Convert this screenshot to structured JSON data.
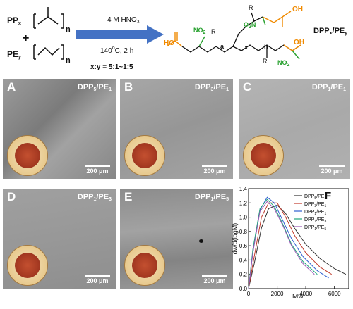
{
  "reaction": {
    "pp": "PP",
    "pp_sub": "x",
    "plus": "+",
    "pe": "PE",
    "pe_sub": "y",
    "n1": "n",
    "n2": "n",
    "reagent": "4 M HNO",
    "reagent_sub": "3",
    "temperature": "140",
    "temp_sup": "o",
    "temp_rest": "C, 2 h",
    "ratio": "x:y = 5:1~1:5",
    "product": "DPP",
    "product_sub_x": "x",
    "product_slash": "/PE",
    "product_sub_y": "y",
    "no2_left": "NO",
    "no2_left_sub": "2",
    "no2_mid": "O",
    "no2_mid_sub": "2",
    "no2_mid_n": "N",
    "no2_right": "NO",
    "no2_right_sub": "2",
    "oh_left": "HO",
    "oh_right_top": "OH",
    "oh_right_bot": "OH",
    "r_top": "R",
    "r_top2": "R",
    "r_bot": "R",
    "label_a": "a",
    "label_b": "b",
    "label_x": "x"
  },
  "panels": [
    {
      "letter": "A",
      "label": "DPP",
      "sub1": "5",
      "mid": "/PE",
      "sub2": "1",
      "scale": "200 μm"
    },
    {
      "letter": "B",
      "label": "DPP",
      "sub1": "3",
      "mid": "/PE",
      "sub2": "1",
      "scale": "200 μm"
    },
    {
      "letter": "C",
      "label": "DPP",
      "sub1": "1",
      "mid": "/PE",
      "sub2": "1",
      "scale": "200 μm"
    },
    {
      "letter": "D",
      "label": "DPP",
      "sub1": "1",
      "mid": "/PE",
      "sub2": "3",
      "scale": "200 μm"
    },
    {
      "letter": "E",
      "label": "DPP",
      "sub1": "1",
      "mid": "/PE",
      "sub2": "5",
      "scale": "200 μm"
    }
  ],
  "colors": {
    "accent_orange": "#f08a00",
    "accent_green": "#27a02e",
    "arrow_blue": "#4472c4"
  },
  "chart_data": {
    "type": "line",
    "panel_letter": "F",
    "xlabel": "Mw",
    "ylabel": "dw/d(logM)",
    "xlim": [
      0,
      7000
    ],
    "ylim": [
      0,
      1.4
    ],
    "xticks": [
      0,
      2000,
      4000,
      6000
    ],
    "yticks": [
      0,
      0.2,
      0.4,
      0.6,
      0.8,
      1.0,
      1.2,
      1.4
    ],
    "legend": [
      {
        "name": "DPP5/PE1",
        "base": "DPP",
        "s1": "5",
        "mid": "/PE",
        "s2": "1",
        "color": "#333333"
      },
      {
        "name": "DPP3/PE1",
        "base": "DPP",
        "s1": "3",
        "mid": "/PE",
        "s2": "1",
        "color": "#c0392b"
      },
      {
        "name": "DPP1/PE1",
        "base": "DPP",
        "s1": "1",
        "mid": "/PE",
        "s2": "1",
        "color": "#2f5fd0"
      },
      {
        "name": "DPP1/PE3",
        "base": "DPP",
        "s1": "1",
        "mid": "/PE",
        "s2": "3",
        "color": "#1fa67a"
      },
      {
        "name": "DPP1/PE5",
        "base": "DPP",
        "s1": "1",
        "mid": "/PE",
        "s2": "5",
        "color": "#9b59b6"
      }
    ],
    "series": [
      {
        "name": "DPP5/PE1",
        "color": "#333333",
        "x": [
          0,
          400,
          900,
          1400,
          2000,
          2600,
          3200,
          4000,
          5000,
          6000,
          6800
        ],
        "y": [
          0,
          0.35,
          0.85,
          1.12,
          1.17,
          1.05,
          0.85,
          0.62,
          0.42,
          0.28,
          0.2
        ]
      },
      {
        "name": "DPP3/PE1",
        "color": "#c0392b",
        "x": [
          0,
          400,
          900,
          1400,
          2000,
          2600,
          3200,
          4000,
          5000,
          5800
        ],
        "y": [
          0,
          0.45,
          1.0,
          1.2,
          1.2,
          1.0,
          0.75,
          0.5,
          0.3,
          0.2
        ]
      },
      {
        "name": "DPP1/PE1",
        "color": "#2f5fd0",
        "x": [
          0,
          300,
          800,
          1300,
          1800,
          2400,
          3000,
          3800,
          4800,
          5600
        ],
        "y": [
          0,
          0.5,
          1.1,
          1.28,
          1.2,
          0.95,
          0.7,
          0.45,
          0.25,
          0.15
        ]
      },
      {
        "name": "DPP1/PE3",
        "color": "#1fa67a",
        "x": [
          0,
          300,
          800,
          1300,
          1800,
          2400,
          3000,
          3800,
          4800
        ],
        "y": [
          0,
          0.55,
          1.12,
          1.25,
          1.15,
          0.9,
          0.62,
          0.38,
          0.2
        ]
      },
      {
        "name": "DPP1/PE5",
        "color": "#9b59b6",
        "x": [
          0,
          300,
          800,
          1300,
          1800,
          2400,
          3000,
          3800,
          4600
        ],
        "y": [
          0,
          0.5,
          1.08,
          1.22,
          1.12,
          0.88,
          0.6,
          0.35,
          0.2
        ]
      }
    ]
  }
}
